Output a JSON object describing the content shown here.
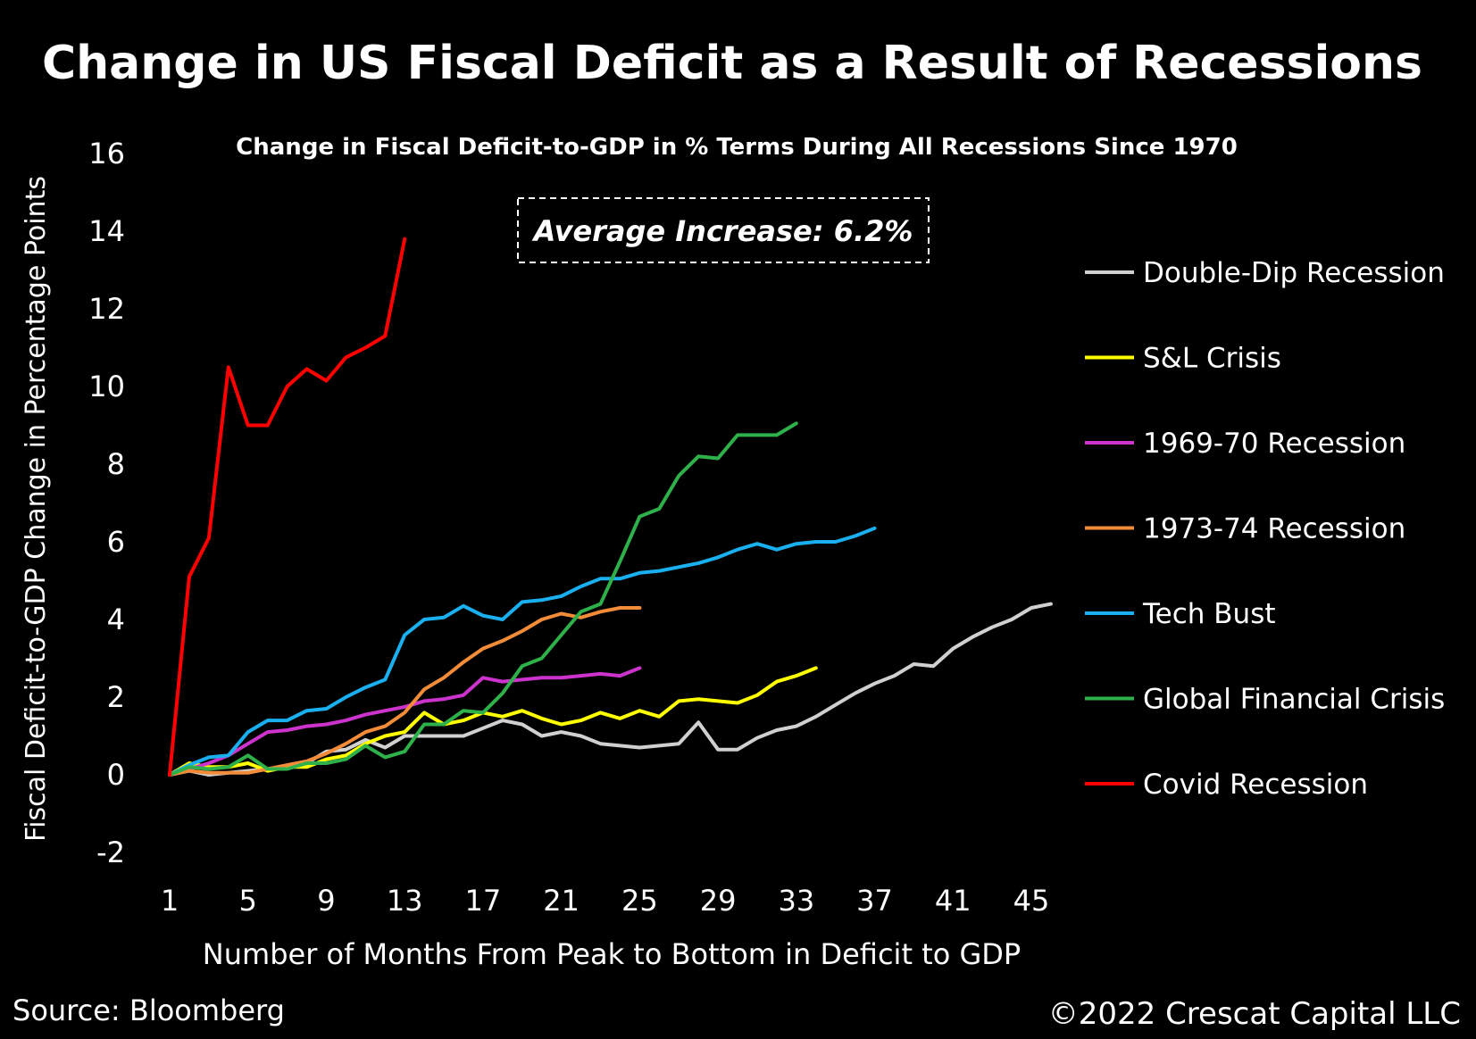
{
  "chart_data": {
    "type": "line",
    "title": "Change in US Fiscal Deficit as a Result of Recessions",
    "subtitle": "Change in Fiscal Deficit-to-GDP in % Terms During All Recessions Since 1970",
    "annotation": "Average Increase: 6.2%",
    "xlabel": "Number of Months From Peak to Bottom in Deficit to GDP",
    "ylabel": "Fiscal Deficit-to-GDP Change in Percentage Points",
    "xlim": [
      1,
      45
    ],
    "ylim": [
      -2,
      16
    ],
    "xticks": [
      1,
      5,
      9,
      13,
      17,
      21,
      25,
      29,
      33,
      37,
      41,
      45
    ],
    "yticks": [
      -2,
      0,
      2,
      4,
      6,
      8,
      10,
      12,
      14,
      16
    ],
    "grid": false,
    "legend_position": "right",
    "source": "Source: Bloomberg",
    "copyright": "©2022 Crescat Capital LLC",
    "series": [
      {
        "name": "Double-Dip Recession",
        "color": "#d0d0d0",
        "values": [
          0,
          0.1,
          0,
          0.05,
          0.1,
          0.15,
          0.2,
          0.3,
          0.6,
          0.65,
          0.9,
          0.7,
          1.0,
          1.0,
          1.0,
          1.0,
          1.2,
          1.4,
          1.3,
          1.0,
          1.1,
          1.0,
          0.8,
          0.75,
          0.7,
          0.75,
          0.8,
          1.35,
          0.65,
          0.65,
          0.95,
          1.15,
          1.25,
          1.5,
          1.8,
          2.1,
          2.35,
          2.55,
          2.85,
          2.8,
          3.25,
          3.55,
          3.8,
          4.0,
          4.3,
          4.4
        ]
      },
      {
        "name": "S&L Crisis",
        "color": "#ffff00",
        "values": [
          0,
          0.3,
          0.2,
          0.2,
          0.3,
          0.1,
          0.2,
          0.2,
          0.4,
          0.5,
          0.8,
          1.0,
          1.1,
          1.6,
          1.3,
          1.4,
          1.6,
          1.5,
          1.65,
          1.45,
          1.3,
          1.4,
          1.6,
          1.45,
          1.65,
          1.5,
          1.9,
          1.95,
          1.9,
          1.85,
          2.05,
          2.4,
          2.55,
          2.75
        ]
      },
      {
        "name": "1969-70 Recession",
        "color": "#cc33cc",
        "values": [
          0,
          0.15,
          0.3,
          0.5,
          0.8,
          1.1,
          1.15,
          1.25,
          1.3,
          1.4,
          1.55,
          1.65,
          1.75,
          1.9,
          1.95,
          2.05,
          2.5,
          2.4,
          2.45,
          2.5,
          2.5,
          2.55,
          2.6,
          2.55,
          2.75
        ]
      },
      {
        "name": "1973-74 Recession",
        "color": "#f28c38",
        "values": [
          0,
          0.1,
          0.05,
          0.05,
          0.05,
          0.15,
          0.25,
          0.35,
          0.55,
          0.8,
          1.1,
          1.25,
          1.6,
          2.2,
          2.5,
          2.9,
          3.25,
          3.45,
          3.7,
          4.0,
          4.15,
          4.05,
          4.2,
          4.3,
          4.3
        ]
      },
      {
        "name": "Tech Bust",
        "color": "#1ab0f0",
        "values": [
          0,
          0.25,
          0.45,
          0.5,
          1.1,
          1.4,
          1.4,
          1.65,
          1.7,
          2.0,
          2.25,
          2.45,
          3.6,
          4.0,
          4.05,
          4.35,
          4.1,
          4.0,
          4.45,
          4.5,
          4.6,
          4.85,
          5.05,
          5.05,
          5.2,
          5.25,
          5.35,
          5.45,
          5.6,
          5.8,
          5.95,
          5.8,
          5.95,
          6.0,
          6.0,
          6.15,
          6.35
        ]
      },
      {
        "name": "Global Financial Crisis",
        "color": "#2eb04a",
        "values": [
          0,
          0.2,
          0.15,
          0.2,
          0.5,
          0.15,
          0.15,
          0.3,
          0.3,
          0.4,
          0.75,
          0.45,
          0.6,
          1.3,
          1.3,
          1.65,
          1.6,
          2.1,
          2.8,
          3.0,
          3.6,
          4.2,
          4.4,
          5.5,
          6.65,
          6.85,
          7.7,
          8.2,
          8.15,
          8.75,
          8.75,
          8.75,
          9.05
        ]
      },
      {
        "name": "Covid Recession",
        "color": "#ff0000",
        "values": [
          0,
          5.1,
          6.1,
          10.5,
          9.0,
          9.0,
          10.0,
          10.45,
          10.15,
          10.75,
          11.0,
          11.3,
          13.8
        ]
      }
    ]
  }
}
